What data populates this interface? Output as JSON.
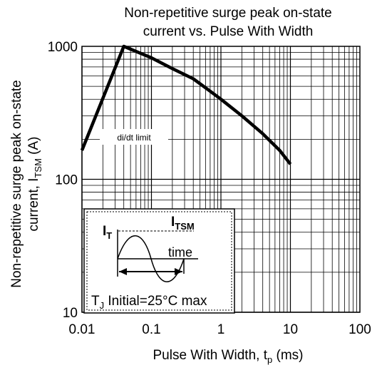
{
  "chart_data": {
    "type": "line",
    "title_line1": "Non-repetitive surge peak on-state",
    "title_line2": "current vs. Pulse With Width",
    "xlabel_main": "Pulse With Width, t",
    "xlabel_sub": "p",
    "xlabel_unit": " (ms)",
    "ylabel_line1": "Non-repetitive surge peak on-state",
    "ylabel_line2_main": "current, I",
    "ylabel_line2_sub": "TSM",
    "ylabel_line2_unit": " (A)",
    "x_scale": "log",
    "y_scale": "log",
    "xlim": [
      0.01,
      100
    ],
    "ylim": [
      10,
      1000
    ],
    "x_ticks": [
      "0.01",
      "0.1",
      "1",
      "10",
      "100"
    ],
    "y_ticks": [
      "10",
      "100",
      "1000"
    ],
    "grid": true,
    "series": [
      {
        "x": [
          0.01,
          0.04,
          0.1,
          0.2,
          0.4,
          0.7,
          1.0,
          2.0,
          4.0,
          7.0,
          10.0
        ],
        "y": [
          165,
          1000,
          820,
          680,
          570,
          460,
          400,
          300,
          220,
          165,
          130
        ]
      }
    ],
    "annotation": "di/dt limit",
    "inset": {
      "label_it_main": "I",
      "label_it_sub": "T",
      "label_itsm_main": "I",
      "label_itsm_sub": "TSM",
      "label_time": "time",
      "footer_main": "T",
      "footer_sub": "J",
      "footer_rest": " Initial=25°C max"
    }
  }
}
